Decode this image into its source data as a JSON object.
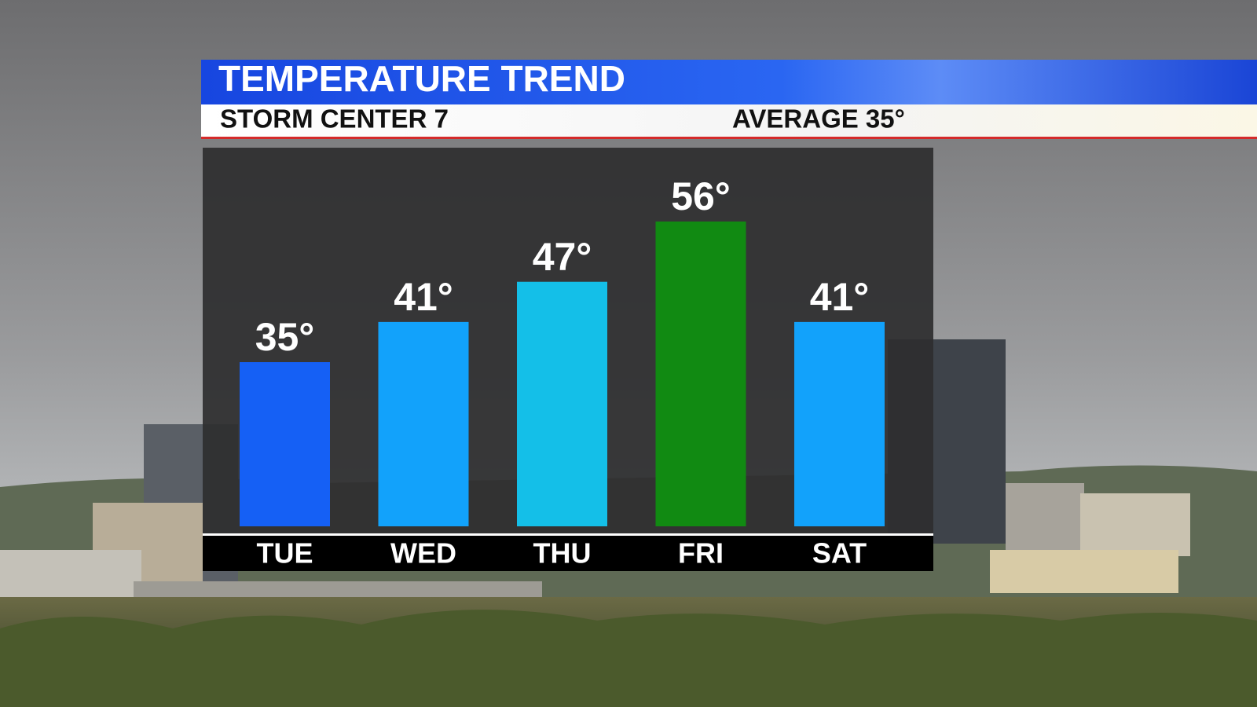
{
  "chart_data": {
    "type": "bar",
    "title": "TEMPERATURE TREND",
    "subtitle": "STORM CENTER 7",
    "annotation": "AVERAGE 35°",
    "categories": [
      "TUE",
      "WED",
      "THU",
      "FRI",
      "SAT"
    ],
    "values": [
      35,
      41,
      47,
      56,
      41
    ],
    "value_labels": [
      "35°",
      "41°",
      "47°",
      "56°",
      "41°"
    ],
    "colors": [
      "#1560f5",
      "#12a2fb",
      "#14bfe8",
      "#118a12",
      "#12a2fb"
    ]
  }
}
